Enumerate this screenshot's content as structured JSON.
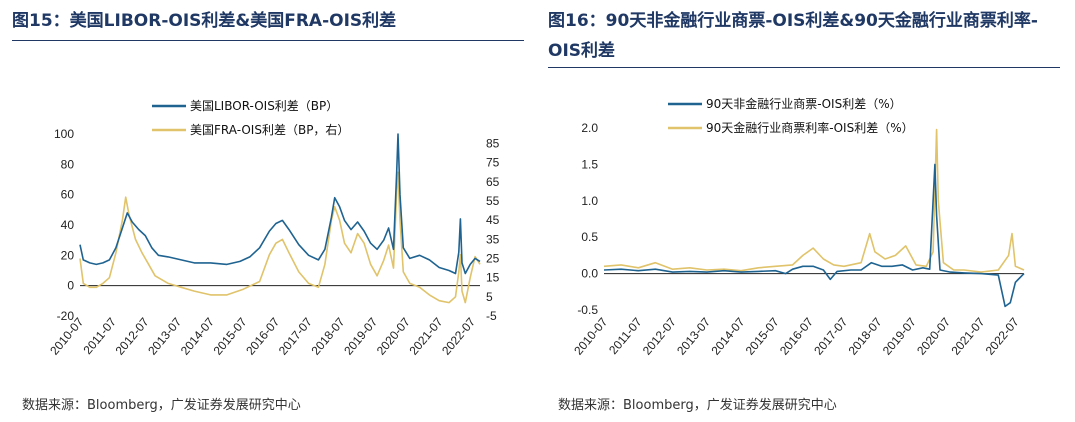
{
  "figures": [
    {
      "title": "图15：美国LIBOR-OIS利差&美国FRA-OIS利差",
      "source": "数据来源：Bloomberg，广发证券发展研究中心"
    },
    {
      "title": "图16：90天非金融行业商票-OIS利差&90天金融行业商票利率-OIS利差",
      "source": "数据来源：Bloomberg，广发证券发展研究中心"
    }
  ],
  "colors": {
    "blue": "#1f6391",
    "gold": "#e0c36a",
    "title": "#1f3864"
  },
  "chart_data": [
    {
      "type": "line",
      "title": "美国LIBOR-OIS利差&美国FRA-OIS利差",
      "x_ticks": [
        "2010-07",
        "2011-07",
        "2012-07",
        "2013-07",
        "2014-07",
        "2015-07",
        "2016-07",
        "2017-07",
        "2018-07",
        "2019-07",
        "2020-07",
        "2021-07",
        "2022-07"
      ],
      "x_range": [
        2010.5,
        2022.75
      ],
      "ylim_left": [
        -20,
        100
      ],
      "yticks_left": [
        100,
        80,
        60,
        40,
        20,
        0,
        -20
      ],
      "ylim_right": [
        -5,
        90
      ],
      "yticks_right": [
        85,
        75,
        65,
        55,
        45,
        35,
        25,
        15,
        5,
        -5
      ],
      "series": [
        {
          "name": "美国LIBOR-OIS利差（BP）",
          "axis": "left",
          "color": "#1f6391",
          "points": [
            [
              2010.5,
              27
            ],
            [
              2010.6,
              17
            ],
            [
              2010.8,
              15
            ],
            [
              2011.0,
              14
            ],
            [
              2011.2,
              15
            ],
            [
              2011.4,
              17
            ],
            [
              2011.6,
              25
            ],
            [
              2011.8,
              38
            ],
            [
              2011.95,
              48
            ],
            [
              2012.1,
              42
            ],
            [
              2012.3,
              37
            ],
            [
              2012.5,
              33
            ],
            [
              2012.7,
              25
            ],
            [
              2012.9,
              20
            ],
            [
              2013.2,
              19
            ],
            [
              2013.6,
              17
            ],
            [
              2014.0,
              15
            ],
            [
              2014.5,
              15
            ],
            [
              2015.0,
              14
            ],
            [
              2015.4,
              16
            ],
            [
              2015.7,
              19
            ],
            [
              2016.0,
              25
            ],
            [
              2016.3,
              36
            ],
            [
              2016.5,
              41
            ],
            [
              2016.7,
              43
            ],
            [
              2016.9,
              37
            ],
            [
              2017.2,
              27
            ],
            [
              2017.5,
              20
            ],
            [
              2017.8,
              17
            ],
            [
              2018.0,
              24
            ],
            [
              2018.2,
              45
            ],
            [
              2018.3,
              58
            ],
            [
              2018.45,
              52
            ],
            [
              2018.6,
              43
            ],
            [
              2018.8,
              37
            ],
            [
              2019.0,
              42
            ],
            [
              2019.2,
              36
            ],
            [
              2019.4,
              28
            ],
            [
              2019.6,
              24
            ],
            [
              2019.8,
              30
            ],
            [
              2019.95,
              38
            ],
            [
              2020.1,
              24
            ],
            [
              2020.2,
              75
            ],
            [
              2020.24,
              100
            ],
            [
              2020.3,
              60
            ],
            [
              2020.4,
              25
            ],
            [
              2020.6,
              18
            ],
            [
              2020.9,
              20
            ],
            [
              2021.2,
              17
            ],
            [
              2021.5,
              12
            ],
            [
              2021.8,
              10
            ],
            [
              2022.0,
              8
            ],
            [
              2022.1,
              22
            ],
            [
              2022.15,
              44
            ],
            [
              2022.2,
              15
            ],
            [
              2022.3,
              8
            ],
            [
              2022.45,
              14
            ],
            [
              2022.6,
              18
            ],
            [
              2022.75,
              16
            ]
          ]
        },
        {
          "name": "美国FRA-OIS利差（BP，右）",
          "axis": "right",
          "color": "#e0c36a",
          "points": [
            [
              2010.5,
              25
            ],
            [
              2010.6,
              12
            ],
            [
              2010.8,
              10
            ],
            [
              2011.0,
              10
            ],
            [
              2011.2,
              12
            ],
            [
              2011.4,
              15
            ],
            [
              2011.6,
              28
            ],
            [
              2011.8,
              45
            ],
            [
              2011.9,
              57
            ],
            [
              2012.0,
              48
            ],
            [
              2012.2,
              35
            ],
            [
              2012.4,
              28
            ],
            [
              2012.6,
              22
            ],
            [
              2012.8,
              16
            ],
            [
              2013.2,
              12
            ],
            [
              2013.6,
              10
            ],
            [
              2014.0,
              8
            ],
            [
              2014.5,
              6
            ],
            [
              2015.0,
              6
            ],
            [
              2015.5,
              9
            ],
            [
              2016.0,
              13
            ],
            [
              2016.3,
              27
            ],
            [
              2016.5,
              33
            ],
            [
              2016.7,
              35
            ],
            [
              2016.9,
              28
            ],
            [
              2017.2,
              18
            ],
            [
              2017.5,
              12
            ],
            [
              2017.8,
              10
            ],
            [
              2018.0,
              22
            ],
            [
              2018.2,
              45
            ],
            [
              2018.3,
              52
            ],
            [
              2018.45,
              45
            ],
            [
              2018.6,
              33
            ],
            [
              2018.8,
              28
            ],
            [
              2019.0,
              38
            ],
            [
              2019.2,
              33
            ],
            [
              2019.4,
              22
            ],
            [
              2019.6,
              16
            ],
            [
              2019.8,
              24
            ],
            [
              2019.95,
              32
            ],
            [
              2020.1,
              20
            ],
            [
              2020.2,
              60
            ],
            [
              2020.24,
              70
            ],
            [
              2020.3,
              45
            ],
            [
              2020.4,
              18
            ],
            [
              2020.6,
              12
            ],
            [
              2020.9,
              10
            ],
            [
              2021.2,
              6
            ],
            [
              2021.5,
              3
            ],
            [
              2021.8,
              2
            ],
            [
              2022.0,
              5
            ],
            [
              2022.1,
              18
            ],
            [
              2022.15,
              27
            ],
            [
              2022.2,
              8
            ],
            [
              2022.3,
              2
            ],
            [
              2022.45,
              15
            ],
            [
              2022.6,
              26
            ],
            [
              2022.75,
              22
            ]
          ]
        }
      ]
    },
    {
      "type": "line",
      "title": "90天非金融行业商票-OIS利差&90天金融行业商票利率-OIS利差",
      "x_ticks": [
        "2010-07",
        "2011-07",
        "2012-07",
        "2013-07",
        "2014-07",
        "2015-07",
        "2016-07",
        "2017-07",
        "2018-07",
        "2019-07",
        "2020-07",
        "2021-07",
        "2022-07"
      ],
      "x_range": [
        2010.5,
        2022.75
      ],
      "ylim": [
        -0.5,
        2.0
      ],
      "yticks": [
        2.0,
        1.5,
        1.0,
        0.5,
        0.0,
        -0.5
      ],
      "series": [
        {
          "name": "90天非金融行业商票-OIS利差（%）",
          "color": "#1f6391",
          "points": [
            [
              2010.5,
              0.05
            ],
            [
              2011.0,
              0.06
            ],
            [
              2011.5,
              0.04
            ],
            [
              2012.0,
              0.06
            ],
            [
              2012.5,
              0.02
            ],
            [
              2013.0,
              0.03
            ],
            [
              2013.5,
              0.02
            ],
            [
              2014.0,
              0.04
            ],
            [
              2014.5,
              0.02
            ],
            [
              2015.0,
              0.03
            ],
            [
              2015.5,
              0.04
            ],
            [
              2015.8,
              0.0
            ],
            [
              2016.0,
              0.06
            ],
            [
              2016.3,
              0.1
            ],
            [
              2016.6,
              0.1
            ],
            [
              2016.9,
              0.05
            ],
            [
              2017.1,
              -0.08
            ],
            [
              2017.3,
              0.03
            ],
            [
              2017.7,
              0.05
            ],
            [
              2018.0,
              0.05
            ],
            [
              2018.3,
              0.15
            ],
            [
              2018.6,
              0.1
            ],
            [
              2018.9,
              0.1
            ],
            [
              2019.2,
              0.12
            ],
            [
              2019.5,
              0.05
            ],
            [
              2019.8,
              0.08
            ],
            [
              2020.0,
              0.06
            ],
            [
              2020.15,
              1.5
            ],
            [
              2020.2,
              0.8
            ],
            [
              2020.3,
              0.05
            ],
            [
              2020.6,
              0.02
            ],
            [
              2021.0,
              0.01
            ],
            [
              2021.5,
              0.0
            ],
            [
              2022.0,
              -0.02
            ],
            [
              2022.2,
              -0.45
            ],
            [
              2022.35,
              -0.4
            ],
            [
              2022.5,
              -0.12
            ],
            [
              2022.75,
              0.0
            ]
          ]
        },
        {
          "name": "90天金融行业商票利率-OIS利差（%）",
          "color": "#e0c36a",
          "points": [
            [
              2010.5,
              0.1
            ],
            [
              2011.0,
              0.12
            ],
            [
              2011.5,
              0.08
            ],
            [
              2012.0,
              0.15
            ],
            [
              2012.5,
              0.06
            ],
            [
              2013.0,
              0.08
            ],
            [
              2013.5,
              0.05
            ],
            [
              2014.0,
              0.06
            ],
            [
              2014.5,
              0.04
            ],
            [
              2015.0,
              0.08
            ],
            [
              2015.5,
              0.1
            ],
            [
              2016.0,
              0.12
            ],
            [
              2016.3,
              0.25
            ],
            [
              2016.6,
              0.35
            ],
            [
              2016.9,
              0.2
            ],
            [
              2017.2,
              0.12
            ],
            [
              2017.5,
              0.1
            ],
            [
              2018.0,
              0.15
            ],
            [
              2018.25,
              0.55
            ],
            [
              2018.4,
              0.3
            ],
            [
              2018.7,
              0.2
            ],
            [
              2019.0,
              0.25
            ],
            [
              2019.3,
              0.38
            ],
            [
              2019.6,
              0.12
            ],
            [
              2019.9,
              0.1
            ],
            [
              2020.1,
              0.3
            ],
            [
              2020.2,
              1.98
            ],
            [
              2020.25,
              1.0
            ],
            [
              2020.4,
              0.15
            ],
            [
              2020.7,
              0.05
            ],
            [
              2021.0,
              0.05
            ],
            [
              2021.5,
              0.02
            ],
            [
              2022.0,
              0.05
            ],
            [
              2022.3,
              0.25
            ],
            [
              2022.4,
              0.55
            ],
            [
              2022.5,
              0.1
            ],
            [
              2022.75,
              0.05
            ]
          ]
        }
      ]
    }
  ]
}
